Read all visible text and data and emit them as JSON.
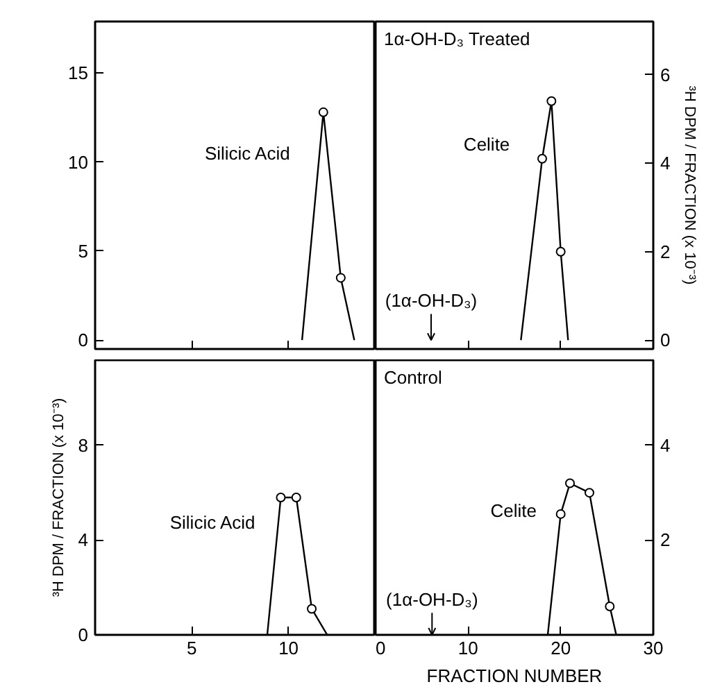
{
  "chart_data": [
    {
      "type": "line",
      "xlim": [
        0,
        14.5
      ],
      "ylim": [
        -0.5,
        17.9
      ],
      "xticks": [
        0,
        5,
        10
      ],
      "yticks": [
        0,
        5,
        10,
        15
      ],
      "tick_labels": "y",
      "grid": false,
      "series": [
        {
          "name": "Silicic Acid",
          "color": "#000000",
          "x": [
            10.7,
            11.8,
            12.7,
            13.4
          ],
          "values": [
            0,
            12.8,
            3.5,
            0
          ],
          "marker": "none"
        },
        {
          "type": "scatter",
          "color": "#000000",
          "x": [
            11.8,
            12.7
          ],
          "values": [
            12.8,
            3.5
          ],
          "marker": "circle"
        }
      ]
    },
    {
      "type": "line",
      "title": "1α-OH-D₃ Treated",
      "xlim": [
        0,
        30
      ],
      "ylim": [
        -0.2,
        7.2
      ],
      "xticks": [
        0,
        10,
        20,
        30
      ],
      "yticks": [
        0,
        2,
        4,
        6
      ],
      "tick_labels": "y",
      "grid": false,
      "ylabel": "³H DPM / FRACTION (x 10⁻³)",
      "series": [
        {
          "name": "Celite",
          "color": "#000000",
          "x": [
            15.7,
            18,
            19,
            20,
            20.8
          ],
          "values": [
            0,
            4.1,
            5.4,
            2.0,
            0
          ],
          "marker": "none"
        },
        {
          "type": "scatter",
          "color": "#000000",
          "x": [
            18,
            19,
            20
          ],
          "values": [
            4.1,
            5.4,
            2.0
          ],
          "marker": "circle"
        }
      ],
      "ref_lines": [
        {
          "axis": "x",
          "value": 6,
          "label": "(1α-OH-D₃)"
        }
      ]
    },
    {
      "type": "line",
      "xlim": [
        0,
        14.5
      ],
      "ylim": [
        0,
        11.6
      ],
      "xticks": [
        5,
        10
      ],
      "yticks": [
        0,
        4,
        8
      ],
      "grid": false,
      "ylabel": "³H DPM / FRACTION (x 10⁻³)",
      "series": [
        {
          "name": "Silicic Acid",
          "color": "#000000",
          "x": [
            8.9,
            9.6,
            10.4,
            11.2,
            12.0
          ],
          "values": [
            0,
            5.8,
            5.8,
            1.1,
            0
          ],
          "marker": "none"
        },
        {
          "type": "scatter",
          "color": "#000000",
          "x": [
            9.6,
            10.4,
            11.2
          ],
          "values": [
            5.8,
            5.8,
            1.1
          ],
          "marker": "circle"
        }
      ]
    },
    {
      "type": "line",
      "title": "Control",
      "xlim": [
        0,
        30
      ],
      "ylim": [
        0,
        5.8
      ],
      "xticks": [
        0,
        10,
        20,
        30
      ],
      "yticks": [
        2,
        4
      ],
      "grid": false,
      "xlabel": "FRACTION NUMBER",
      "series": [
        {
          "name": "Celite",
          "color": "#000000",
          "x": [
            18.6,
            20,
            21,
            23.1,
            25.3,
            26
          ],
          "values": [
            0,
            2.55,
            3.2,
            3.0,
            0.6,
            0
          ],
          "marker": "none"
        },
        {
          "type": "scatter",
          "color": "#000000",
          "x": [
            20,
            21,
            23.1,
            25.3
          ],
          "values": [
            2.55,
            3.2,
            3.0,
            0.6
          ],
          "marker": "circle"
        }
      ],
      "ref_lines": [
        {
          "axis": "x",
          "value": 6.1,
          "label": "(1α-OH-D₃)"
        }
      ]
    }
  ]
}
